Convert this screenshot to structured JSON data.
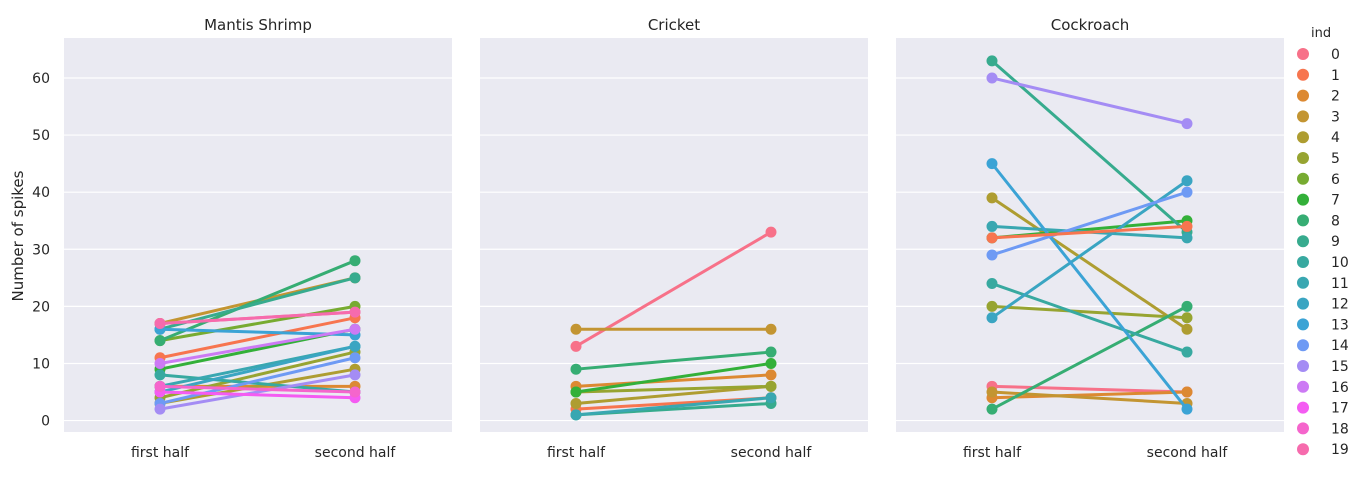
{
  "chart_data": {
    "type": "line",
    "ylabel": "Number of spikes",
    "ylim": [
      -2,
      67
    ],
    "yticks": [
      0,
      10,
      20,
      30,
      40,
      50,
      60
    ],
    "categories": [
      "first half",
      "second half"
    ],
    "grid": true,
    "legend": {
      "title": "ind",
      "placement": "right",
      "entries": [
        "0",
        "1",
        "2",
        "3",
        "4",
        "5",
        "6",
        "7",
        "8",
        "9",
        "10",
        "11",
        "12",
        "13",
        "14",
        "15",
        "16",
        "17",
        "18",
        "19"
      ]
    },
    "palette": [
      "#f77189",
      "#f7754f",
      "#dc8932",
      "#c39532",
      "#ae9d31",
      "#97a431",
      "#77ab31",
      "#33b039",
      "#36ad73",
      "#37ab8e",
      "#38a9a0",
      "#39a7b1",
      "#3aa5c2",
      "#3ba3d5",
      "#6e9af4",
      "#a48cf4",
      "#cc7af4",
      "#f45cf2",
      "#f565cc",
      "#f66bad"
    ],
    "panels": [
      {
        "title": "Mantis Shrimp",
        "series": [
          {
            "ind": 0,
            "values": [
              17,
              19
            ]
          },
          {
            "ind": 1,
            "values": [
              11,
              18
            ]
          },
          {
            "ind": 2,
            "values": [
              6,
              6
            ]
          },
          {
            "ind": 3,
            "values": [
              17,
              25
            ]
          },
          {
            "ind": 4,
            "values": [
              3,
              9
            ]
          },
          {
            "ind": 5,
            "values": [
              4,
              12
            ]
          },
          {
            "ind": 6,
            "values": [
              14,
              20
            ]
          },
          {
            "ind": 7,
            "values": [
              9,
              16
            ]
          },
          {
            "ind": 8,
            "values": [
              14,
              28
            ]
          },
          {
            "ind": 9,
            "values": [
              16,
              25
            ]
          },
          {
            "ind": 10,
            "values": [
              8,
              5
            ]
          },
          {
            "ind": 11,
            "values": [
              6,
              13
            ]
          },
          {
            "ind": 12,
            "values": [
              5,
              13
            ]
          },
          {
            "ind": 13,
            "values": [
              16,
              15
            ]
          },
          {
            "ind": 14,
            "values": [
              3,
              11
            ]
          },
          {
            "ind": 15,
            "values": [
              2,
              8
            ]
          },
          {
            "ind": 16,
            "values": [
              10,
              16
            ]
          },
          {
            "ind": 17,
            "values": [
              5,
              4
            ]
          },
          {
            "ind": 18,
            "values": [
              6,
              5
            ]
          },
          {
            "ind": 19,
            "values": [
              17,
              19
            ]
          }
        ]
      },
      {
        "title": "Cricket",
        "series": [
          {
            "ind": 0,
            "values": [
              13,
              33
            ]
          },
          {
            "ind": 1,
            "values": [
              2,
              4
            ]
          },
          {
            "ind": 2,
            "values": [
              6,
              8
            ]
          },
          {
            "ind": 3,
            "values": [
              16,
              16
            ]
          },
          {
            "ind": 4,
            "values": [
              3,
              6
            ]
          },
          {
            "ind": 5,
            "values": [
              5,
              6
            ]
          },
          {
            "ind": 7,
            "values": [
              5,
              10
            ]
          },
          {
            "ind": 8,
            "values": [
              9,
              12
            ]
          },
          {
            "ind": 9,
            "values": [
              1,
              3
            ]
          },
          {
            "ind": 11,
            "values": [
              1,
              4
            ]
          }
        ]
      },
      {
        "title": "Cockroach",
        "series": [
          {
            "ind": 0,
            "values": [
              6,
              5
            ]
          },
          {
            "ind": 2,
            "values": [
              4,
              5
            ]
          },
          {
            "ind": 3,
            "values": [
              5,
              3
            ]
          },
          {
            "ind": 4,
            "values": [
              39,
              16
            ]
          },
          {
            "ind": 5,
            "values": [
              20,
              18
            ]
          },
          {
            "ind": 7,
            "values": [
              32,
              35
            ]
          },
          {
            "ind": 8,
            "values": [
              2,
              20
            ]
          },
          {
            "ind": 9,
            "values": [
              63,
              33
            ]
          },
          {
            "ind": 10,
            "values": [
              24,
              12
            ]
          },
          {
            "ind": 11,
            "values": [
              34,
              32
            ]
          },
          {
            "ind": 12,
            "values": [
              18,
              42
            ]
          },
          {
            "ind": 13,
            "values": [
              45,
              2
            ]
          },
          {
            "ind": 14,
            "values": [
              29,
              40
            ]
          },
          {
            "ind": 15,
            "values": [
              60,
              52
            ]
          },
          {
            "ind": 1,
            "values": [
              32,
              34
            ]
          }
        ]
      }
    ]
  }
}
